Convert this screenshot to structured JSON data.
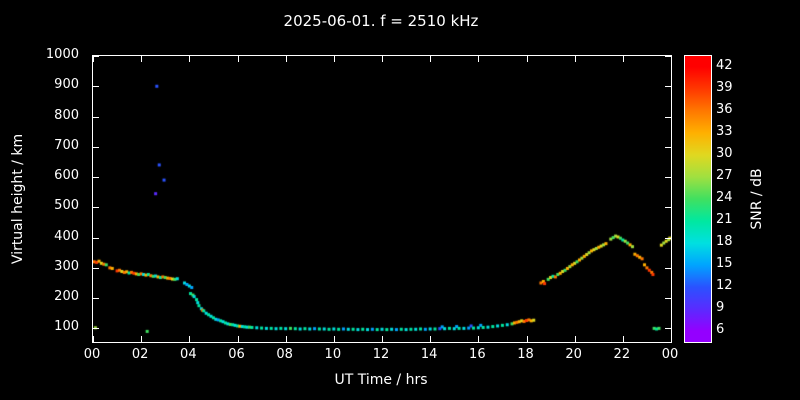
{
  "chart_data": {
    "type": "scatter",
    "title": "2025-06-01. f = 2510 kHz",
    "xlabel": "UT Time / hrs",
    "ylabel": "Virtual height / km",
    "colorbar_label": "SNR / dB",
    "background": "#000000",
    "axis_color": "#ffffff",
    "grid": false,
    "xlim": [
      0,
      24
    ],
    "ylim": [
      55,
      1000
    ],
    "x_ticks": {
      "values": [
        0,
        2,
        4,
        6,
        8,
        10,
        12,
        14,
        16,
        18,
        20,
        22,
        24
      ],
      "labels": [
        "00",
        "02",
        "04",
        "06",
        "08",
        "10",
        "12",
        "14",
        "16",
        "18",
        "20",
        "22",
        "00"
      ]
    },
    "y_ticks": [
      100,
      200,
      300,
      400,
      500,
      600,
      700,
      800,
      900,
      1000
    ],
    "colorbar": {
      "min": 4.5,
      "max": 43.5,
      "ticks": [
        6,
        9,
        12,
        15,
        18,
        21,
        24,
        27,
        30,
        33,
        36,
        39,
        42
      ],
      "stops": [
        {
          "v": 6,
          "c": "#9400ff"
        },
        {
          "v": 9,
          "c": "#5a2bff"
        },
        {
          "v": 12,
          "c": "#2a52ff"
        },
        {
          "v": 15,
          "c": "#00a4ff"
        },
        {
          "v": 18,
          "c": "#00e0e0"
        },
        {
          "v": 21,
          "c": "#00e8a0"
        },
        {
          "v": 24,
          "c": "#40e060"
        },
        {
          "v": 27,
          "c": "#a0e040"
        },
        {
          "v": 30,
          "c": "#e0d820"
        },
        {
          "v": 33,
          "c": "#ffb000"
        },
        {
          "v": 36,
          "c": "#ff7800"
        },
        {
          "v": 39,
          "c": "#ff3800"
        },
        {
          "v": 42,
          "c": "#ff0000"
        }
      ]
    },
    "points_format": [
      "ut_hours",
      "virtual_height_km",
      "snr_db"
    ],
    "points": [
      [
        0.05,
        320,
        36
      ],
      [
        0.1,
        102,
        27
      ],
      [
        0.15,
        318,
        39
      ],
      [
        0.25,
        322,
        33
      ],
      [
        0.35,
        315,
        30
      ],
      [
        0.45,
        312,
        36
      ],
      [
        0.55,
        310,
        24
      ],
      [
        0.7,
        300,
        36
      ],
      [
        0.8,
        298,
        33
      ],
      [
        1.0,
        290,
        39
      ],
      [
        1.1,
        292,
        36
      ],
      [
        1.2,
        288,
        30
      ],
      [
        1.3,
        285,
        36
      ],
      [
        1.4,
        287,
        33
      ],
      [
        1.5,
        283,
        21
      ],
      [
        1.6,
        285,
        36
      ],
      [
        1.7,
        282,
        39
      ],
      [
        1.8,
        280,
        33
      ],
      [
        1.9,
        278,
        24
      ],
      [
        2.0,
        280,
        36
      ],
      [
        2.1,
        278,
        18
      ],
      [
        2.2,
        276,
        33
      ],
      [
        2.25,
        90,
        24
      ],
      [
        2.3,
        278,
        21
      ],
      [
        2.4,
        274,
        36
      ],
      [
        2.5,
        272,
        24
      ],
      [
        2.6,
        273,
        18
      ],
      [
        2.6,
        545,
        9
      ],
      [
        2.65,
        900,
        12
      ],
      [
        2.7,
        270,
        33
      ],
      [
        2.75,
        640,
        12
      ],
      [
        2.8,
        268,
        21
      ],
      [
        2.9,
        270,
        36
      ],
      [
        2.95,
        590,
        12
      ],
      [
        3.0,
        268,
        24
      ],
      [
        3.1,
        266,
        33
      ],
      [
        3.2,
        265,
        36
      ],
      [
        3.3,
        263,
        30
      ],
      [
        3.4,
        262,
        24
      ],
      [
        3.5,
        264,
        18
      ],
      [
        3.8,
        250,
        18
      ],
      [
        3.9,
        245,
        15
      ],
      [
        4.0,
        240,
        18
      ],
      [
        4.05,
        215,
        21
      ],
      [
        4.1,
        235,
        15
      ],
      [
        4.15,
        210,
        24
      ],
      [
        4.2,
        205,
        18
      ],
      [
        4.3,
        195,
        21
      ],
      [
        4.35,
        185,
        18
      ],
      [
        4.4,
        175,
        21
      ],
      [
        4.5,
        165,
        18
      ],
      [
        4.55,
        160,
        36
      ],
      [
        4.6,
        158,
        21
      ],
      [
        4.7,
        150,
        18
      ],
      [
        4.8,
        145,
        21
      ],
      [
        4.9,
        140,
        18
      ],
      [
        5.0,
        135,
        21
      ],
      [
        5.1,
        130,
        18
      ],
      [
        5.2,
        128,
        15
      ],
      [
        5.3,
        125,
        21
      ],
      [
        5.4,
        122,
        18
      ],
      [
        5.5,
        118,
        21
      ],
      [
        5.6,
        115,
        18
      ],
      [
        5.7,
        113,
        24
      ],
      [
        5.8,
        112,
        21
      ],
      [
        5.9,
        110,
        18
      ],
      [
        6.0,
        108,
        21
      ],
      [
        6.1,
        107,
        33
      ],
      [
        6.2,
        106,
        18
      ],
      [
        6.3,
        105,
        21
      ],
      [
        6.4,
        104,
        18
      ],
      [
        6.5,
        104,
        24
      ],
      [
        6.6,
        103,
        21
      ],
      [
        6.8,
        102,
        18
      ],
      [
        7.0,
        101,
        21
      ],
      [
        7.2,
        100,
        18
      ],
      [
        7.4,
        100,
        21
      ],
      [
        7.6,
        99,
        18
      ],
      [
        7.8,
        100,
        21
      ],
      [
        8.0,
        99,
        18
      ],
      [
        8.2,
        100,
        24
      ],
      [
        8.4,
        99,
        21
      ],
      [
        8.6,
        98,
        18
      ],
      [
        8.8,
        99,
        21
      ],
      [
        9.0,
        98,
        18
      ],
      [
        9.2,
        99,
        15
      ],
      [
        9.4,
        98,
        21
      ],
      [
        9.6,
        98,
        18
      ],
      [
        9.8,
        97,
        21
      ],
      [
        10.0,
        98,
        18
      ],
      [
        10.2,
        97,
        21
      ],
      [
        10.4,
        98,
        15
      ],
      [
        10.6,
        97,
        18
      ],
      [
        10.8,
        97,
        21
      ],
      [
        11.0,
        96,
        18
      ],
      [
        11.2,
        97,
        21
      ],
      [
        11.4,
        96,
        18
      ],
      [
        11.6,
        97,
        15
      ],
      [
        11.8,
        96,
        21
      ],
      [
        12.0,
        97,
        18
      ],
      [
        12.2,
        96,
        21
      ],
      [
        12.4,
        97,
        18
      ],
      [
        12.6,
        96,
        15
      ],
      [
        12.8,
        97,
        21
      ],
      [
        13.0,
        96,
        18
      ],
      [
        13.2,
        97,
        21
      ],
      [
        13.4,
        97,
        18
      ],
      [
        13.6,
        98,
        21
      ],
      [
        13.8,
        97,
        15
      ],
      [
        14.0,
        98,
        18
      ],
      [
        14.2,
        98,
        21
      ],
      [
        14.4,
        99,
        12
      ],
      [
        14.5,
        105,
        15
      ],
      [
        14.6,
        99,
        18
      ],
      [
        14.8,
        100,
        21
      ],
      [
        15.0,
        99,
        18
      ],
      [
        15.1,
        106,
        15
      ],
      [
        15.2,
        100,
        21
      ],
      [
        15.4,
        100,
        18
      ],
      [
        15.6,
        101,
        15
      ],
      [
        15.7,
        108,
        12
      ],
      [
        15.8,
        101,
        21
      ],
      [
        16.0,
        102,
        18
      ],
      [
        16.1,
        110,
        15
      ],
      [
        16.2,
        103,
        21
      ],
      [
        16.4,
        104,
        18
      ],
      [
        16.6,
        106,
        21
      ],
      [
        16.8,
        108,
        18
      ],
      [
        17.0,
        110,
        21
      ],
      [
        17.2,
        112,
        18
      ],
      [
        17.4,
        115,
        24
      ],
      [
        17.5,
        118,
        33
      ],
      [
        17.6,
        120,
        36
      ],
      [
        17.7,
        122,
        33
      ],
      [
        17.8,
        125,
        30
      ],
      [
        17.9,
        123,
        36
      ],
      [
        18.0,
        126,
        39
      ],
      [
        18.1,
        128,
        36
      ],
      [
        18.2,
        125,
        33
      ],
      [
        18.3,
        127,
        30
      ],
      [
        18.6,
        250,
        36
      ],
      [
        18.7,
        255,
        33
      ],
      [
        18.75,
        248,
        39
      ],
      [
        18.9,
        262,
        24
      ],
      [
        19.0,
        268,
        30
      ],
      [
        19.1,
        272,
        21
      ],
      [
        19.2,
        270,
        36
      ],
      [
        19.3,
        278,
        24
      ],
      [
        19.4,
        282,
        33
      ],
      [
        19.5,
        288,
        30
      ],
      [
        19.6,
        292,
        24
      ],
      [
        19.7,
        298,
        33
      ],
      [
        19.8,
        304,
        27
      ],
      [
        19.9,
        310,
        33
      ],
      [
        20.0,
        315,
        30
      ],
      [
        20.1,
        320,
        24
      ],
      [
        20.2,
        326,
        33
      ],
      [
        20.3,
        332,
        27
      ],
      [
        20.4,
        338,
        33
      ],
      [
        20.5,
        344,
        30
      ],
      [
        20.6,
        350,
        27
      ],
      [
        20.7,
        356,
        33
      ],
      [
        20.8,
        360,
        30
      ],
      [
        20.9,
        364,
        27
      ],
      [
        21.0,
        368,
        33
      ],
      [
        21.1,
        372,
        30
      ],
      [
        21.2,
        376,
        27
      ],
      [
        21.3,
        380,
        33
      ],
      [
        21.5,
        395,
        27
      ],
      [
        21.6,
        400,
        24
      ],
      [
        21.7,
        405,
        27
      ],
      [
        21.8,
        402,
        30
      ],
      [
        21.9,
        398,
        24
      ],
      [
        22.0,
        392,
        21
      ],
      [
        22.1,
        388,
        27
      ],
      [
        22.2,
        382,
        24
      ],
      [
        22.3,
        376,
        33
      ],
      [
        22.4,
        370,
        27
      ],
      [
        22.5,
        345,
        33
      ],
      [
        22.6,
        340,
        36
      ],
      [
        22.7,
        335,
        33
      ],
      [
        22.8,
        330,
        36
      ],
      [
        22.9,
        310,
        33
      ],
      [
        23.0,
        300,
        36
      ],
      [
        23.1,
        292,
        39
      ],
      [
        23.2,
        285,
        36
      ],
      [
        23.25,
        278,
        39
      ],
      [
        23.3,
        100,
        24
      ],
      [
        23.4,
        98,
        21
      ],
      [
        23.5,
        100,
        24
      ],
      [
        23.6,
        375,
        30
      ],
      [
        23.7,
        382,
        27
      ],
      [
        23.8,
        388,
        30
      ],
      [
        23.9,
        393,
        27
      ],
      [
        23.95,
        398,
        30
      ]
    ]
  }
}
